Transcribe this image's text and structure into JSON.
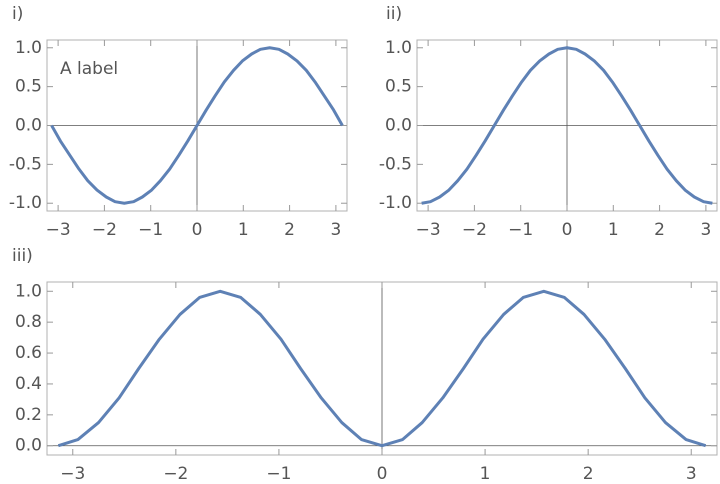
{
  "chart_data": [
    {
      "type": "line",
      "label": "i)",
      "annotation": "A label",
      "x": [
        -3.14,
        -2.95,
        -2.75,
        -2.55,
        -2.36,
        -2.16,
        -1.96,
        -1.77,
        -1.57,
        -1.37,
        -1.18,
        -0.98,
        -0.79,
        -0.59,
        -0.39,
        -0.2,
        0,
        0.2,
        0.39,
        0.59,
        0.79,
        0.98,
        1.18,
        1.37,
        1.57,
        1.77,
        1.96,
        2.16,
        2.36,
        2.55,
        2.75,
        2.95,
        3.14
      ],
      "series": [
        {
          "color": "#5e81b5",
          "values": [
            0,
            -0.2,
            -0.38,
            -0.56,
            -0.71,
            -0.83,
            -0.92,
            -0.98,
            -1,
            -0.98,
            -0.92,
            -0.83,
            -0.71,
            -0.56,
            -0.38,
            -0.2,
            0,
            0.2,
            0.38,
            0.56,
            0.71,
            0.83,
            0.92,
            0.98,
            1,
            0.98,
            0.92,
            0.83,
            0.71,
            0.56,
            0.38,
            0.2,
            0
          ]
        }
      ],
      "xlim": [
        -3.24,
        3.24
      ],
      "ylim": [
        -1.1,
        1.1
      ],
      "xticks": [
        {
          "value": -3,
          "label": "−3"
        },
        {
          "value": -2,
          "label": "−2"
        },
        {
          "value": -1,
          "label": "−1"
        },
        0,
        1,
        2,
        3
      ],
      "yticks": [
        {
          "value": -1,
          "label": "-1.0"
        },
        {
          "value": -0.5,
          "label": "-0.5"
        },
        {
          "value": 0,
          "label": "0.0"
        },
        {
          "value": 0.5,
          "label": "0.5"
        },
        {
          "value": 1,
          "label": "1.0"
        }
      ]
    },
    {
      "type": "line",
      "label": "ii)",
      "x": [
        -3.14,
        -2.95,
        -2.75,
        -2.55,
        -2.36,
        -2.16,
        -1.96,
        -1.77,
        -1.57,
        -1.37,
        -1.18,
        -0.98,
        -0.79,
        -0.59,
        -0.39,
        -0.2,
        0,
        0.2,
        0.39,
        0.59,
        0.79,
        0.98,
        1.18,
        1.37,
        1.57,
        1.77,
        1.96,
        2.16,
        2.36,
        2.55,
        2.75,
        2.95,
        3.14
      ],
      "series": [
        {
          "color": "#5e81b5",
          "values": [
            -1,
            -0.98,
            -0.92,
            -0.83,
            -0.71,
            -0.56,
            -0.38,
            -0.2,
            0,
            0.2,
            0.38,
            0.56,
            0.71,
            0.83,
            0.92,
            0.98,
            1,
            0.98,
            0.92,
            0.83,
            0.71,
            0.56,
            0.38,
            0.2,
            0,
            -0.2,
            -0.38,
            -0.56,
            -0.71,
            -0.83,
            -0.92,
            -0.98,
            -1
          ]
        }
      ],
      "xlim": [
        -3.24,
        3.24
      ],
      "ylim": [
        -1.1,
        1.1
      ],
      "xticks": [
        {
          "value": -3,
          "label": "−3"
        },
        {
          "value": -2,
          "label": "−2"
        },
        {
          "value": -1,
          "label": "−1"
        },
        0,
        1,
        2,
        3
      ],
      "yticks": [
        {
          "value": -1,
          "label": "-1.0"
        },
        {
          "value": -0.5,
          "label": "-0.5"
        },
        {
          "value": 0,
          "label": "0.0"
        },
        {
          "value": 0.5,
          "label": "0.5"
        },
        {
          "value": 1,
          "label": "1.0"
        }
      ]
    },
    {
      "type": "line",
      "label": "iii)",
      "x": [
        -3.14,
        -2.95,
        -2.75,
        -2.55,
        -2.36,
        -2.16,
        -1.96,
        -1.77,
        -1.57,
        -1.37,
        -1.18,
        -0.98,
        -0.79,
        -0.59,
        -0.39,
        -0.2,
        0,
        0.2,
        0.39,
        0.59,
        0.79,
        0.98,
        1.18,
        1.37,
        1.57,
        1.77,
        1.96,
        2.16,
        2.36,
        2.55,
        2.75,
        2.95,
        3.14
      ],
      "series": [
        {
          "color": "#5e81b5",
          "values": [
            0,
            0.04,
            0.15,
            0.31,
            0.5,
            0.69,
            0.85,
            0.96,
            1,
            0.96,
            0.85,
            0.69,
            0.5,
            0.31,
            0.15,
            0.04,
            0,
            0.04,
            0.15,
            0.31,
            0.5,
            0.69,
            0.85,
            0.96,
            1,
            0.96,
            0.85,
            0.69,
            0.5,
            0.31,
            0.15,
            0.04,
            0
          ]
        }
      ],
      "xlim": [
        -3.25,
        3.25
      ],
      "ylim": [
        -0.06,
        1.06
      ],
      "xticks": [
        {
          "value": -3,
          "label": "−3"
        },
        {
          "value": -2,
          "label": "−2"
        },
        {
          "value": -1,
          "label": "−1"
        },
        0,
        1,
        2,
        3
      ],
      "yticks": [
        {
          "value": 0,
          "label": "0.0"
        },
        {
          "value": 0.2,
          "label": "0.2"
        },
        {
          "value": 0.4,
          "label": "0.4"
        },
        {
          "value": 0.6,
          "label": "0.6"
        },
        {
          "value": 0.8,
          "label": "0.8"
        },
        {
          "value": 1,
          "label": "1.0"
        }
      ]
    }
  ]
}
